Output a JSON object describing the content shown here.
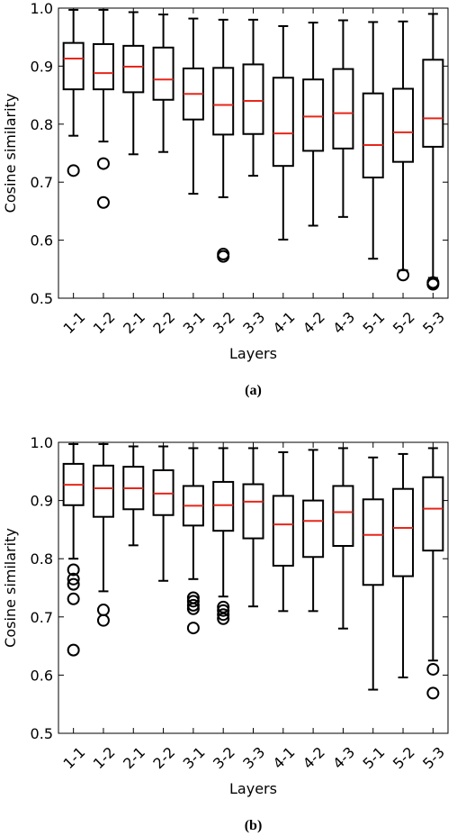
{
  "chart_data": [
    {
      "type": "box",
      "caption": "(a)",
      "xlabel": "Layers",
      "ylabel": "Cosine similarity",
      "ylim": [
        0.5,
        1.0
      ],
      "yticks": [
        "0.5",
        "0.6",
        "0.7",
        "0.8",
        "0.9",
        "1.0"
      ],
      "categories": [
        "1-1",
        "1-2",
        "2-1",
        "2-2",
        "3-1",
        "3-2",
        "3-3",
        "4-1",
        "4-2",
        "4-3",
        "5-1",
        "5-2",
        "5-3"
      ],
      "boxes": [
        {
          "label": "1-1",
          "whislo": 0.78,
          "q1": 0.86,
          "med": 0.913,
          "q3": 0.94,
          "whishi": 0.997,
          "fliers": [
            0.72
          ]
        },
        {
          "label": "1-2",
          "whislo": 0.77,
          "q1": 0.86,
          "med": 0.888,
          "q3": 0.938,
          "whishi": 0.997,
          "fliers": [
            0.732,
            0.665
          ]
        },
        {
          "label": "2-1",
          "whislo": 0.748,
          "q1": 0.855,
          "med": 0.899,
          "q3": 0.935,
          "whishi": 0.993,
          "fliers": []
        },
        {
          "label": "2-2",
          "whislo": 0.752,
          "q1": 0.842,
          "med": 0.877,
          "q3": 0.932,
          "whishi": 0.989,
          "fliers": []
        },
        {
          "label": "3-1",
          "whislo": 0.68,
          "q1": 0.808,
          "med": 0.852,
          "q3": 0.896,
          "whishi": 0.982,
          "fliers": []
        },
        {
          "label": "3-2",
          "whislo": 0.674,
          "q1": 0.782,
          "med": 0.833,
          "q3": 0.897,
          "whishi": 0.98,
          "fliers": [
            0.576,
            0.572
          ]
        },
        {
          "label": "3-3",
          "whislo": 0.711,
          "q1": 0.783,
          "med": 0.84,
          "q3": 0.903,
          "whishi": 0.98,
          "fliers": []
        },
        {
          "label": "4-1",
          "whislo": 0.601,
          "q1": 0.728,
          "med": 0.784,
          "q3": 0.88,
          "whishi": 0.969,
          "fliers": []
        },
        {
          "label": "4-2",
          "whislo": 0.625,
          "q1": 0.754,
          "med": 0.813,
          "q3": 0.877,
          "whishi": 0.975,
          "fliers": []
        },
        {
          "label": "4-3",
          "whislo": 0.64,
          "q1": 0.758,
          "med": 0.819,
          "q3": 0.895,
          "whishi": 0.979,
          "fliers": []
        },
        {
          "label": "5-1",
          "whislo": 0.568,
          "q1": 0.708,
          "med": 0.764,
          "q3": 0.853,
          "whishi": 0.976,
          "fliers": []
        },
        {
          "label": "5-2",
          "whislo": 0.548,
          "q1": 0.735,
          "med": 0.786,
          "q3": 0.861,
          "whishi": 0.977,
          "fliers": [
            0.54
          ]
        },
        {
          "label": "5-3",
          "whislo": 0.535,
          "q1": 0.761,
          "med": 0.81,
          "q3": 0.911,
          "whishi": 0.99,
          "fliers": [
            0.527,
            0.524
          ]
        }
      ]
    },
    {
      "type": "box",
      "caption": "(b)",
      "xlabel": "Layers",
      "ylabel": "Cosine similarity",
      "ylim": [
        0.5,
        1.0
      ],
      "yticks": [
        "0.5",
        "0.6",
        "0.7",
        "0.8",
        "0.9",
        "1.0"
      ],
      "categories": [
        "1-1",
        "1-2",
        "2-1",
        "2-2",
        "3-1",
        "3-2",
        "3-3",
        "4-1",
        "4-2",
        "4-3",
        "5-1",
        "5-2",
        "5-3"
      ],
      "boxes": [
        {
          "label": "1-1",
          "whislo": 0.8,
          "q1": 0.892,
          "med": 0.927,
          "q3": 0.963,
          "whishi": 0.997,
          "fliers": [
            0.781,
            0.765,
            0.756,
            0.731,
            0.643
          ]
        },
        {
          "label": "1-2",
          "whislo": 0.744,
          "q1": 0.872,
          "med": 0.921,
          "q3": 0.96,
          "whishi": 0.997,
          "fliers": [
            0.712,
            0.694
          ]
        },
        {
          "label": "2-1",
          "whislo": 0.823,
          "q1": 0.885,
          "med": 0.921,
          "q3": 0.958,
          "whishi": 0.993,
          "fliers": []
        },
        {
          "label": "2-2",
          "whislo": 0.762,
          "q1": 0.875,
          "med": 0.912,
          "q3": 0.952,
          "whishi": 0.993,
          "fliers": []
        },
        {
          "label": "3-1",
          "whislo": 0.765,
          "q1": 0.857,
          "med": 0.891,
          "q3": 0.925,
          "whishi": 0.99,
          "fliers": [
            0.733,
            0.727,
            0.72,
            0.714,
            0.681
          ]
        },
        {
          "label": "3-2",
          "whislo": 0.735,
          "q1": 0.848,
          "med": 0.892,
          "q3": 0.932,
          "whishi": 0.99,
          "fliers": [
            0.717,
            0.711,
            0.704,
            0.697
          ]
        },
        {
          "label": "3-3",
          "whislo": 0.718,
          "q1": 0.835,
          "med": 0.898,
          "q3": 0.928,
          "whishi": 0.99,
          "fliers": []
        },
        {
          "label": "4-1",
          "whislo": 0.71,
          "q1": 0.788,
          "med": 0.859,
          "q3": 0.908,
          "whishi": 0.983,
          "fliers": []
        },
        {
          "label": "4-2",
          "whislo": 0.71,
          "q1": 0.803,
          "med": 0.865,
          "q3": 0.9,
          "whishi": 0.987,
          "fliers": []
        },
        {
          "label": "4-3",
          "whislo": 0.68,
          "q1": 0.822,
          "med": 0.88,
          "q3": 0.925,
          "whishi": 0.99,
          "fliers": []
        },
        {
          "label": "5-1",
          "whislo": 0.575,
          "q1": 0.755,
          "med": 0.841,
          "q3": 0.902,
          "whishi": 0.974,
          "fliers": []
        },
        {
          "label": "5-2",
          "whislo": 0.596,
          "q1": 0.77,
          "med": 0.853,
          "q3": 0.92,
          "whishi": 0.98,
          "fliers": []
        },
        {
          "label": "5-3",
          "whislo": 0.625,
          "q1": 0.814,
          "med": 0.886,
          "q3": 0.94,
          "whishi": 0.99,
          "fliers": [
            0.61,
            0.569
          ]
        }
      ]
    }
  ],
  "colors": {
    "median": "#e8261a",
    "box": "#000000",
    "background": "#ffffff"
  }
}
